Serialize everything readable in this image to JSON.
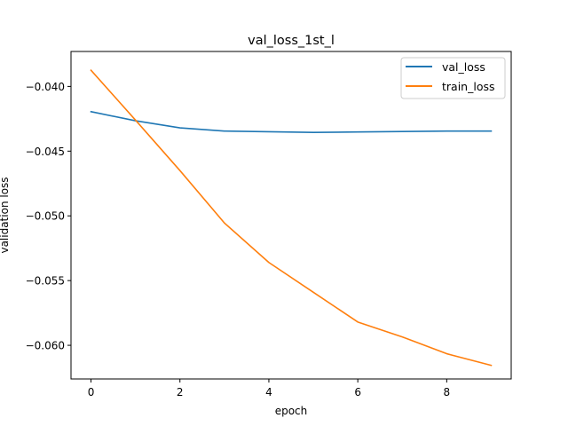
{
  "chart_data": {
    "type": "line",
    "title": "val_loss_1st_l",
    "xlabel": "epoch",
    "ylabel": "validation loss",
    "xlim": [
      -0.45,
      9.45
    ],
    "ylim": [
      -0.0626,
      -0.0373
    ],
    "x_ticks": [
      0,
      2,
      4,
      6,
      8
    ],
    "x_tick_labels": [
      "0",
      "2",
      "4",
      "6",
      "8"
    ],
    "y_ticks": [
      -0.06,
      -0.055,
      -0.05,
      -0.045,
      -0.04
    ],
    "y_tick_labels": [
      "−0.060",
      "−0.055",
      "−0.050",
      "−0.045",
      "−0.040"
    ],
    "grid": false,
    "legend_position": "top-right",
    "x": [
      0,
      1,
      2,
      3,
      4,
      5,
      6,
      7,
      8,
      9
    ],
    "series": [
      {
        "name": "val_loss",
        "color": "#1f77b4",
        "values": [
          -0.04195,
          -0.04265,
          -0.0432,
          -0.04345,
          -0.0435,
          -0.04355,
          -0.04352,
          -0.04348,
          -0.04345,
          -0.04345
        ]
      },
      {
        "name": "train_loss",
        "color": "#ff7f0e",
        "values": [
          -0.03875,
          -0.0426,
          -0.0465,
          -0.05055,
          -0.0536,
          -0.0559,
          -0.0582,
          -0.05935,
          -0.06065,
          -0.06155
        ]
      }
    ]
  }
}
